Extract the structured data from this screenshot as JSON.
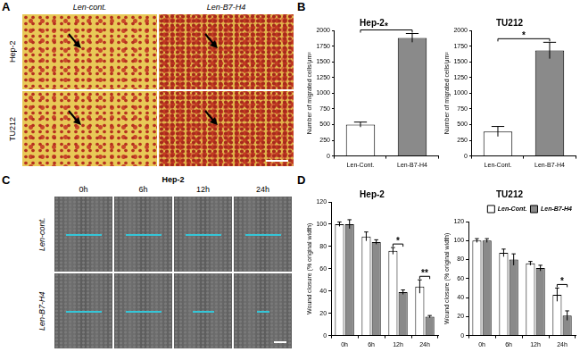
{
  "panel_labels": [
    "A",
    "B",
    "C",
    "D"
  ],
  "image_panels": [
    {
      "columns": [
        "Len-cont.",
        "Len-B7-H4"
      ],
      "rows": [
        "Hep-2",
        "TU212"
      ]
    },
    {
      "title": "Hep-2",
      "columns": [
        "0h",
        "6h",
        "12h",
        "24h"
      ],
      "rows": [
        "Len-cont.",
        "Len-B7-H4"
      ]
    }
  ],
  "chart_data": [
    {
      "type": "bar",
      "title": "Hep-2",
      "y_label": "Number of migrated cells/μm²",
      "categories": [
        "Len-Cont.",
        "Len-B7-H4"
      ],
      "values": [
        500,
        1880
      ],
      "errors": [
        40,
        70
      ],
      "colors": [
        "#ffffff",
        "#8a8a8a"
      ],
      "ylim": [
        0,
        2000
      ],
      "yticks": [
        0,
        250,
        500,
        750,
        1000,
        1250,
        1500,
        1750,
        2000
      ],
      "grid": false,
      "annotations": [
        "*"
      ]
    },
    {
      "type": "bar",
      "title": "TU212",
      "y_label": "Number of migrated cells/μm²",
      "categories": [
        "Len-Cont.",
        "Len-B7-H4"
      ],
      "values": [
        390,
        1680
      ],
      "errors": [
        80,
        130
      ],
      "colors": [
        "#ffffff",
        "#8a8a8a"
      ],
      "ylim": [
        0,
        2000
      ],
      "yticks": [
        0,
        250,
        500,
        750,
        1000,
        1250,
        1500,
        1750,
        2000
      ],
      "grid": false,
      "annotations": [
        "*"
      ]
    },
    {
      "type": "bar",
      "title": "Hep-2",
      "y_label": "Wound closure (% original width)",
      "categories": [
        "0h",
        "6h",
        "12h",
        "24h"
      ],
      "series": [
        {
          "name": "Len-Cont.",
          "color": "#ffffff",
          "values": [
            100,
            89,
            76,
            44
          ],
          "errors": [
            2,
            4,
            3,
            6
          ]
        },
        {
          "name": "Len-B7-H4",
          "color": "#8a8a8a",
          "values": [
            100,
            84,
            39,
            17
          ],
          "errors": [
            4,
            2,
            2,
            1
          ]
        }
      ],
      "ylim": [
        0,
        120
      ],
      "yticks": [
        0,
        20,
        40,
        60,
        80,
        100,
        120
      ],
      "grid": false,
      "annotations": [
        null,
        null,
        "*",
        "**"
      ]
    },
    {
      "type": "bar",
      "title": "TU212",
      "y_label": "Wound closure (% original width)",
      "categories": [
        "0h",
        "6h",
        "12h",
        "24h"
      ],
      "series": [
        {
          "name": "Len-Cont.",
          "color": "#ffffff",
          "values": [
            100,
            87,
            76,
            43
          ],
          "errors": [
            2,
            4,
            2,
            7
          ]
        },
        {
          "name": "Len-B7-H4",
          "color": "#8a8a8a",
          "values": [
            100,
            80,
            71,
            21
          ],
          "errors": [
            2,
            6,
            3,
            5
          ]
        }
      ],
      "ylim": [
        0,
        120
      ],
      "yticks": [
        0,
        20,
        40,
        60,
        80,
        100,
        120
      ],
      "grid": false,
      "legend": "upper right",
      "annotations": [
        null,
        null,
        null,
        "*"
      ]
    }
  ]
}
